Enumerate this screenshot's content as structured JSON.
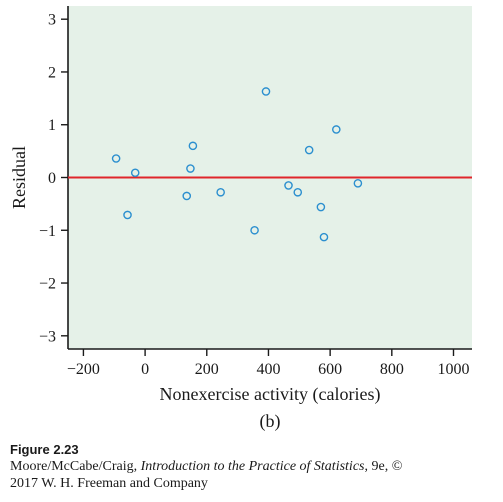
{
  "chart_data": {
    "type": "scatter",
    "xlabel": "Nonexercise activity (calories)",
    "ylabel": "Residual",
    "sublabel": "(b)",
    "xlim": [
      -250,
      1060
    ],
    "ylim": [
      -3.25,
      3.25
    ],
    "x_ticks": [
      -200,
      0,
      200,
      400,
      600,
      800,
      1000
    ],
    "y_ticks": [
      3,
      2,
      1,
      0,
      -1,
      -2,
      -3
    ],
    "x_tick_labels": [
      "−200",
      "0",
      "200",
      "400",
      "600",
      "800",
      "1000"
    ],
    "y_tick_labels": [
      "3",
      "2",
      "1",
      "0",
      "−1",
      "−2",
      "−3"
    ],
    "reference_line": {
      "y": 0,
      "color": "#e0262b"
    },
    "points": [
      {
        "x": -94,
        "y": 0.36
      },
      {
        "x": -57,
        "y": -0.71
      },
      {
        "x": -32,
        "y": 0.09
      },
      {
        "x": 135,
        "y": -0.35
      },
      {
        "x": 147,
        "y": 0.17
      },
      {
        "x": 155,
        "y": 0.6
      },
      {
        "x": 245,
        "y": -0.28
      },
      {
        "x": 355,
        "y": -1.0
      },
      {
        "x": 392,
        "y": 1.63
      },
      {
        "x": 465,
        "y": -0.15
      },
      {
        "x": 495,
        "y": -0.28
      },
      {
        "x": 532,
        "y": 0.52
      },
      {
        "x": 570,
        "y": -0.56
      },
      {
        "x": 580,
        "y": -1.13
      },
      {
        "x": 620,
        "y": 0.91
      },
      {
        "x": 690,
        "y": -0.11
      }
    ],
    "colors": {
      "plot_background": "#e5f1e8",
      "marker": "#2b8fcf",
      "axis": "#1a1a1a"
    },
    "grid": false
  },
  "caption": {
    "figure_number": "Figure 2.23",
    "authors": "Moore/McCabe/Craig, ",
    "book_title": "Introduction to the Practice of Statistics",
    "edition": ", 9e, ©",
    "publisher_line": "2017 W. H. Freeman and Company"
  }
}
